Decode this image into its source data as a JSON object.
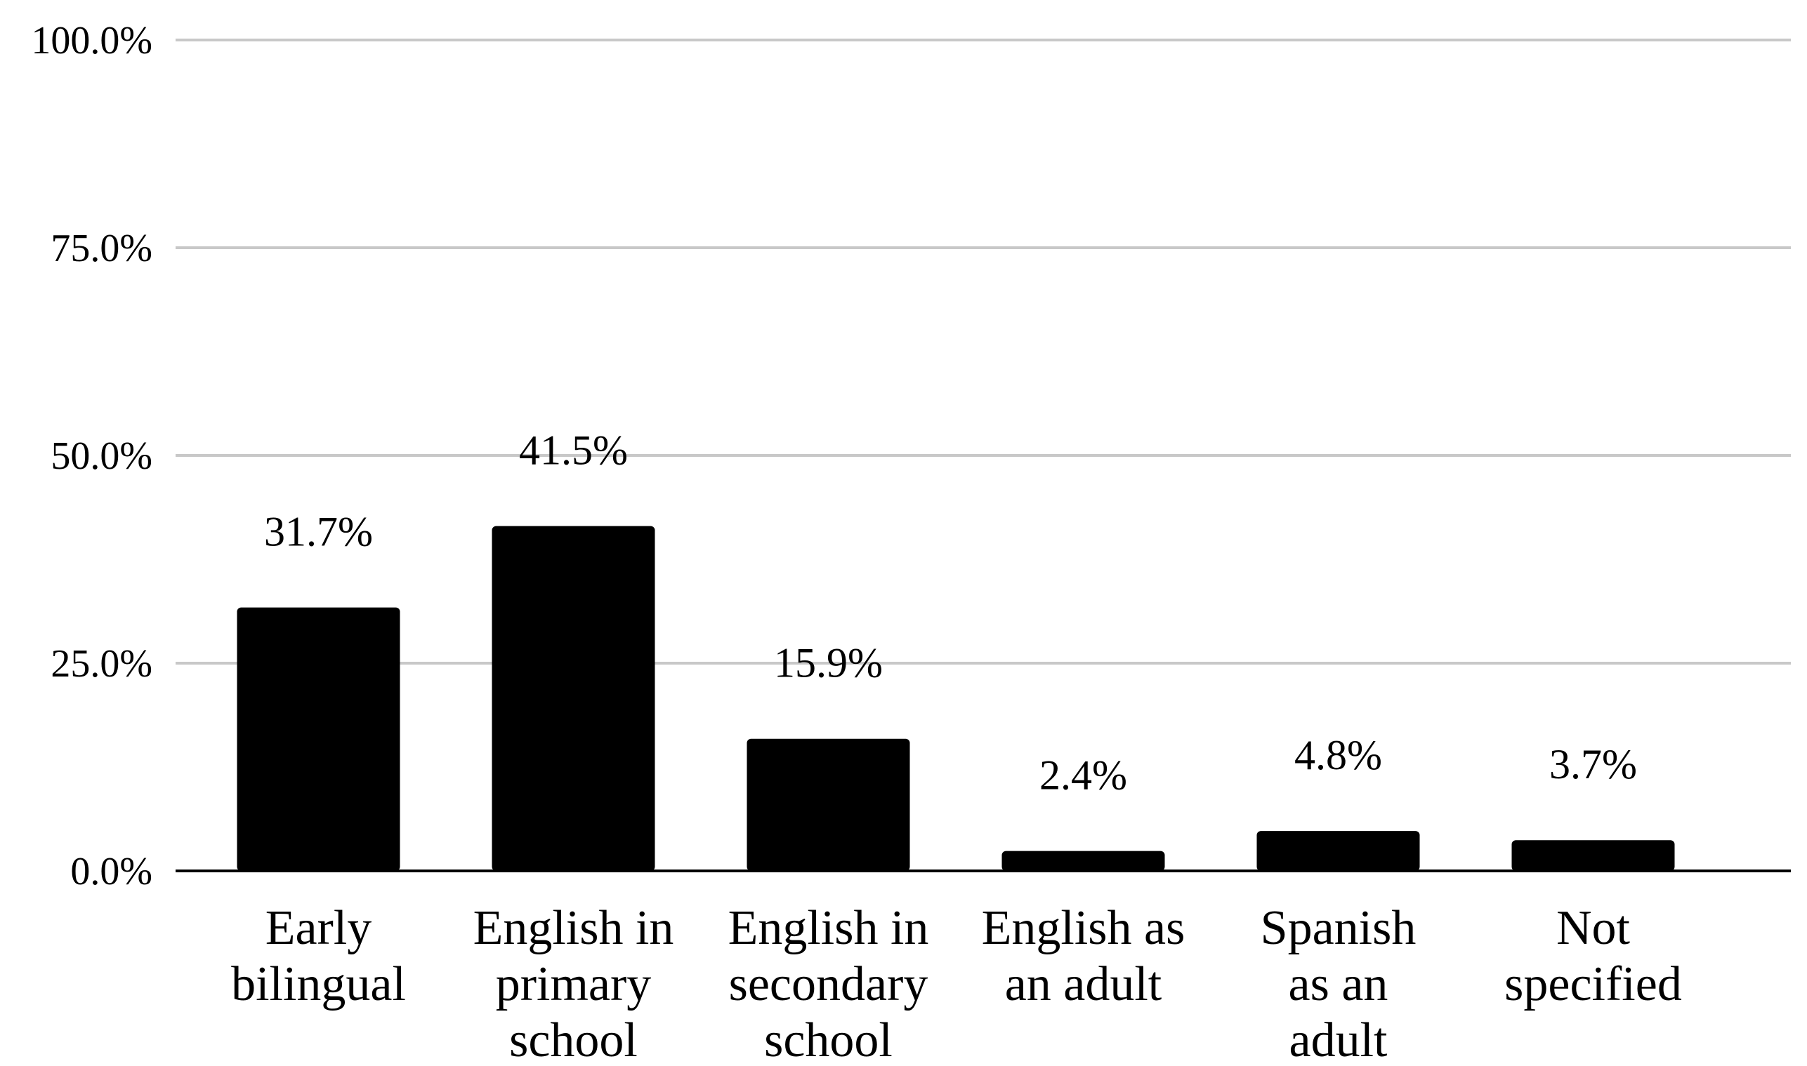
{
  "colors": {
    "bar": "#000000",
    "gridline": "#c8c8c8",
    "axis": "#000000",
    "text": "#000000",
    "background": "#ffffff"
  },
  "chart_data": {
    "type": "bar",
    "title": "",
    "xlabel": "",
    "ylabel": "",
    "categories": [
      [
        "Early",
        "bilingual"
      ],
      [
        "English in",
        "primary",
        "school"
      ],
      [
        "English in",
        "secondary",
        "school"
      ],
      [
        "English as",
        "an adult"
      ],
      [
        "Spanish",
        "as an",
        "adult"
      ],
      [
        "Not",
        "specified"
      ]
    ],
    "values": [
      31.7,
      41.5,
      15.9,
      2.4,
      4.8,
      3.7
    ],
    "data_labels": [
      "31.7%",
      "41.5%",
      "15.9%",
      "2.4%",
      "4.8%",
      "3.7%"
    ],
    "ylim": [
      0,
      100
    ],
    "yticks": [
      0,
      25,
      50,
      75,
      100
    ],
    "ytick_labels": [
      "0.0%",
      "25.0%",
      "50.0%",
      "75.0%",
      "100.0%"
    ],
    "grid": true,
    "legend": "none"
  }
}
